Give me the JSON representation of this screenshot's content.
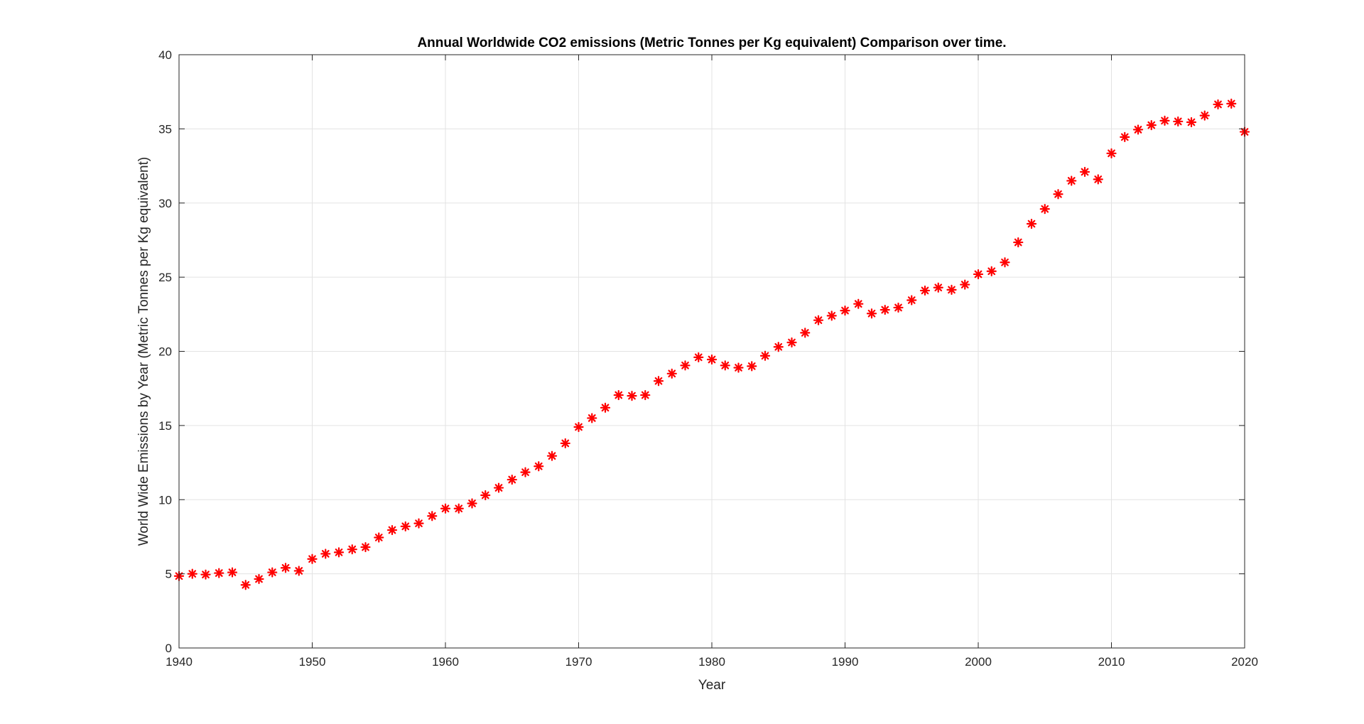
{
  "chart_data": {
    "type": "scatter",
    "title": "Annual Worldwide CO2 emissions (Metric Tonnes per Kg equivalent) Comparison over time.",
    "xlabel": "Year",
    "ylabel": "World Wide Emissions by Year (Metric Tonnes per Kg equivalent)",
    "xlim": [
      1940,
      2020
    ],
    "ylim": [
      0,
      40
    ],
    "xticks": [
      1940,
      1950,
      1960,
      1970,
      1980,
      1990,
      2000,
      2010,
      2020
    ],
    "yticks": [
      0,
      5,
      10,
      15,
      20,
      25,
      30,
      35,
      40
    ],
    "grid": true,
    "marker": "*",
    "marker_color": "#ff0000",
    "series": [
      {
        "x": [
          1940,
          1941,
          1942,
          1943,
          1944,
          1945,
          1946,
          1947,
          1948,
          1949,
          1950,
          1951,
          1952,
          1953,
          1954,
          1955,
          1956,
          1957,
          1958,
          1959,
          1960,
          1961,
          1962,
          1963,
          1964,
          1965,
          1966,
          1967,
          1968,
          1969,
          1970,
          1971,
          1972,
          1973,
          1974,
          1975,
          1976,
          1977,
          1978,
          1979,
          1980,
          1981,
          1982,
          1983,
          1984,
          1985,
          1986,
          1987,
          1988,
          1989,
          1990,
          1991,
          1992,
          1993,
          1994,
          1995,
          1996,
          1997,
          1998,
          1999,
          2000,
          2001,
          2002,
          2003,
          2004,
          2005,
          2006,
          2007,
          2008,
          2009,
          2010,
          2011,
          2012,
          2013,
          2014,
          2015,
          2016,
          2017,
          2018,
          2019,
          2020
        ],
        "y": [
          4.85,
          5.0,
          4.95,
          5.05,
          5.1,
          4.25,
          4.65,
          5.1,
          5.4,
          5.2,
          6.0,
          6.35,
          6.45,
          6.65,
          6.8,
          7.45,
          7.95,
          8.2,
          8.4,
          8.9,
          9.4,
          9.4,
          9.75,
          10.3,
          10.8,
          11.35,
          11.85,
          12.25,
          12.95,
          13.8,
          14.9,
          15.5,
          16.2,
          17.05,
          17.0,
          17.05,
          18.0,
          18.5,
          19.05,
          19.6,
          19.45,
          19.05,
          18.9,
          19.0,
          19.7,
          20.3,
          20.6,
          21.25,
          22.1,
          22.4,
          22.75,
          23.2,
          22.55,
          22.8,
          22.95,
          23.45,
          24.1,
          24.3,
          24.15,
          24.5,
          25.2,
          25.4,
          26.0,
          27.35,
          28.6,
          29.6,
          30.6,
          31.5,
          32.1,
          31.6,
          33.35,
          34.45,
          34.95,
          35.25,
          35.55,
          35.5,
          35.45,
          35.9,
          36.65,
          36.7,
          34.8
        ]
      }
    ]
  }
}
